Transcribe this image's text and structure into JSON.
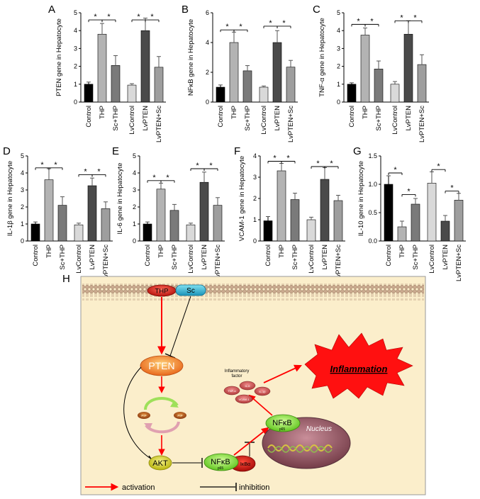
{
  "colors": {
    "control": "#000000",
    "thp": "#b3b3b3",
    "sc_thp": "#7a7a7a",
    "lvcontrol": "#d9d9d9",
    "lvpten": "#4a4a4a",
    "lvpten_sc": "#9e9e9e",
    "diagram_bg": "#fbeecb",
    "activation": "#ff0000",
    "inhibition": "#000000"
  },
  "chart_data": [
    {
      "panel": "A",
      "type": "bar",
      "ylabel": "PTEN gene in Hepatocyte",
      "categories": [
        "Control",
        "THP",
        "Sc+THP",
        "LvControl",
        "LvPTEN",
        "LvPTEN+Sc"
      ],
      "values": [
        1.0,
        3.8,
        2.05,
        0.95,
        4.0,
        1.95
      ],
      "errors": [
        0.12,
        0.6,
        0.55,
        0.08,
        0.7,
        0.6
      ],
      "ylim": [
        0,
        5
      ],
      "yticks": [
        "0",
        "1",
        "2",
        "3",
        "4",
        "5"
      ],
      "sig": [
        {
          "a": 0,
          "b": 1,
          "level": 4.6,
          "label": "*"
        },
        {
          "a": 1,
          "b": 2,
          "level": 4.6,
          "label": "*"
        },
        {
          "a": 3,
          "b": 4,
          "level": 4.6,
          "label": "*"
        },
        {
          "a": 4,
          "b": 5,
          "level": 4.6,
          "label": "*"
        }
      ]
    },
    {
      "panel": "B",
      "type": "bar",
      "ylabel": "NFκB gene in Hepatocyte",
      "categories": [
        "Control",
        "THP",
        "Sc+THP",
        "LvControl",
        "LvPTEN",
        "LvPTEN+Sc"
      ],
      "values": [
        1.0,
        4.0,
        2.1,
        1.0,
        4.0,
        2.35
      ],
      "errors": [
        0.15,
        0.7,
        0.35,
        0.08,
        0.8,
        0.45
      ],
      "ylim": [
        0,
        6
      ],
      "yticks": [
        "0",
        "2",
        "4",
        "6"
      ],
      "sig": [
        {
          "a": 0,
          "b": 1,
          "level": 4.85,
          "label": "*"
        },
        {
          "a": 1,
          "b": 2,
          "level": 4.85,
          "label": "*"
        },
        {
          "a": 3,
          "b": 4,
          "level": 5.1,
          "label": "*"
        },
        {
          "a": 4,
          "b": 5,
          "level": 5.1,
          "label": "*"
        }
      ]
    },
    {
      "panel": "C",
      "type": "bar",
      "ylabel": "TNF-α gene in Hepatocyte",
      "categories": [
        "Control",
        "THP",
        "Sc+THP",
        "LvControl",
        "LvPTEN",
        "LvPTEN+Sc"
      ],
      "values": [
        1.0,
        3.75,
        1.85,
        1.0,
        3.8,
        2.1
      ],
      "errors": [
        0.08,
        0.4,
        0.45,
        0.15,
        0.75,
        0.55
      ],
      "ylim": [
        0,
        5
      ],
      "yticks": [
        "0",
        "1",
        "2",
        "3",
        "4",
        "5"
      ],
      "sig": [
        {
          "a": 0,
          "b": 1,
          "level": 4.35,
          "label": "*"
        },
        {
          "a": 1,
          "b": 2,
          "level": 4.35,
          "label": "*"
        },
        {
          "a": 3,
          "b": 4,
          "level": 4.55,
          "label": "*"
        },
        {
          "a": 4,
          "b": 5,
          "level": 4.55,
          "label": "*"
        }
      ]
    },
    {
      "panel": "D",
      "type": "bar",
      "ylabel": "IL-1β gene in Hepatocyte",
      "categories": [
        "Control",
        "THP",
        "Sc+THP",
        "LvControl",
        "LvPTEN",
        "LvPTEN+Sc"
      ],
      "values": [
        1.0,
        3.6,
        2.1,
        0.95,
        3.25,
        1.9
      ],
      "errors": [
        0.12,
        0.65,
        0.5,
        0.1,
        0.45,
        0.4
      ],
      "ylim": [
        0,
        5
      ],
      "yticks": [
        "0",
        "1",
        "2",
        "3",
        "4",
        "5"
      ],
      "sig": [
        {
          "a": 0,
          "b": 1,
          "level": 4.3,
          "label": "*"
        },
        {
          "a": 1,
          "b": 2,
          "level": 4.3,
          "label": "*"
        },
        {
          "a": 3,
          "b": 4,
          "level": 3.9,
          "label": "*"
        },
        {
          "a": 4,
          "b": 5,
          "level": 3.9,
          "label": "*"
        }
      ]
    },
    {
      "panel": "E",
      "type": "bar",
      "ylabel": "IL-6 gene in Hepatocyte",
      "categories": [
        "Control",
        "THP",
        "Sc+THP",
        "LvControl",
        "LvPTEN",
        "LvPTEN+Sc"
      ],
      "values": [
        1.0,
        3.05,
        1.8,
        0.95,
        3.45,
        2.1
      ],
      "errors": [
        0.12,
        0.35,
        0.35,
        0.1,
        0.6,
        0.45
      ],
      "ylim": [
        0,
        5
      ],
      "yticks": [
        "0",
        "1",
        "2",
        "3",
        "4",
        "5"
      ],
      "sig": [
        {
          "a": 0,
          "b": 1,
          "level": 3.55,
          "label": "*"
        },
        {
          "a": 1,
          "b": 2,
          "level": 3.55,
          "label": "*"
        },
        {
          "a": 3,
          "b": 4,
          "level": 4.25,
          "label": "*"
        },
        {
          "a": 4,
          "b": 5,
          "level": 4.25,
          "label": "*"
        }
      ]
    },
    {
      "panel": "F",
      "type": "bar",
      "ylabel": "VCAM-1 gene in Hepatocyte",
      "categories": [
        "Control",
        "THP",
        "Sc+THP",
        "LvControl",
        "LvPTEN",
        "LvPTEN+Sc"
      ],
      "values": [
        0.95,
        3.3,
        1.95,
        1.0,
        2.9,
        1.9
      ],
      "errors": [
        0.2,
        0.35,
        0.3,
        0.12,
        0.55,
        0.25
      ],
      "ylim": [
        0,
        4
      ],
      "yticks": [
        "0",
        "1",
        "2",
        "3",
        "4"
      ],
      "sig": [
        {
          "a": 0,
          "b": 1,
          "level": 3.75,
          "label": "*"
        },
        {
          "a": 1,
          "b": 2,
          "level": 3.75,
          "label": "*"
        },
        {
          "a": 3,
          "b": 4,
          "level": 3.5,
          "label": "*"
        },
        {
          "a": 4,
          "b": 5,
          "level": 3.5,
          "label": "*"
        }
      ]
    },
    {
      "panel": "G",
      "type": "bar",
      "ylabel": "IL-10 gene in Hepatocyte",
      "categories": [
        "Control",
        "THP",
        "Sc+THP",
        "LvControl",
        "LvPTEN",
        "LvPTEN+Sc"
      ],
      "values": [
        1.0,
        0.25,
        0.65,
        1.02,
        0.35,
        0.72
      ],
      "errors": [
        0.15,
        0.1,
        0.1,
        0.2,
        0.1,
        0.12
      ],
      "ylim": [
        0,
        1.5
      ],
      "yticks": [
        "0.0",
        "0.5",
        "1.0",
        "1.5"
      ],
      "sig": [
        {
          "a": 0,
          "b": 1,
          "level": 1.2,
          "label": "*"
        },
        {
          "a": 1,
          "b": 2,
          "level": 0.82,
          "label": "*"
        },
        {
          "a": 3,
          "b": 4,
          "level": 1.26,
          "label": "*"
        },
        {
          "a": 4,
          "b": 5,
          "level": 0.88,
          "label": "*"
        }
      ]
    }
  ],
  "diagram": {
    "panel_letter": "H",
    "thp": "THP",
    "sc": "Sc",
    "pten": "PTEN",
    "akt": "AKT",
    "nfkb": "NFκB",
    "p65": "p65",
    "ikba": "IκBα",
    "nucleus": "Nucleus",
    "inflammatory_factor": "Inflammatory\nfactor",
    "factor_labels": [
      "IL-6",
      "TNF-α",
      "IL-1β",
      "VCAM-1"
    ],
    "inflammation": "Inflammation",
    "ptdins_label": "PIP",
    "legend_activation": "activation",
    "legend_inhibition": "inhibition"
  }
}
